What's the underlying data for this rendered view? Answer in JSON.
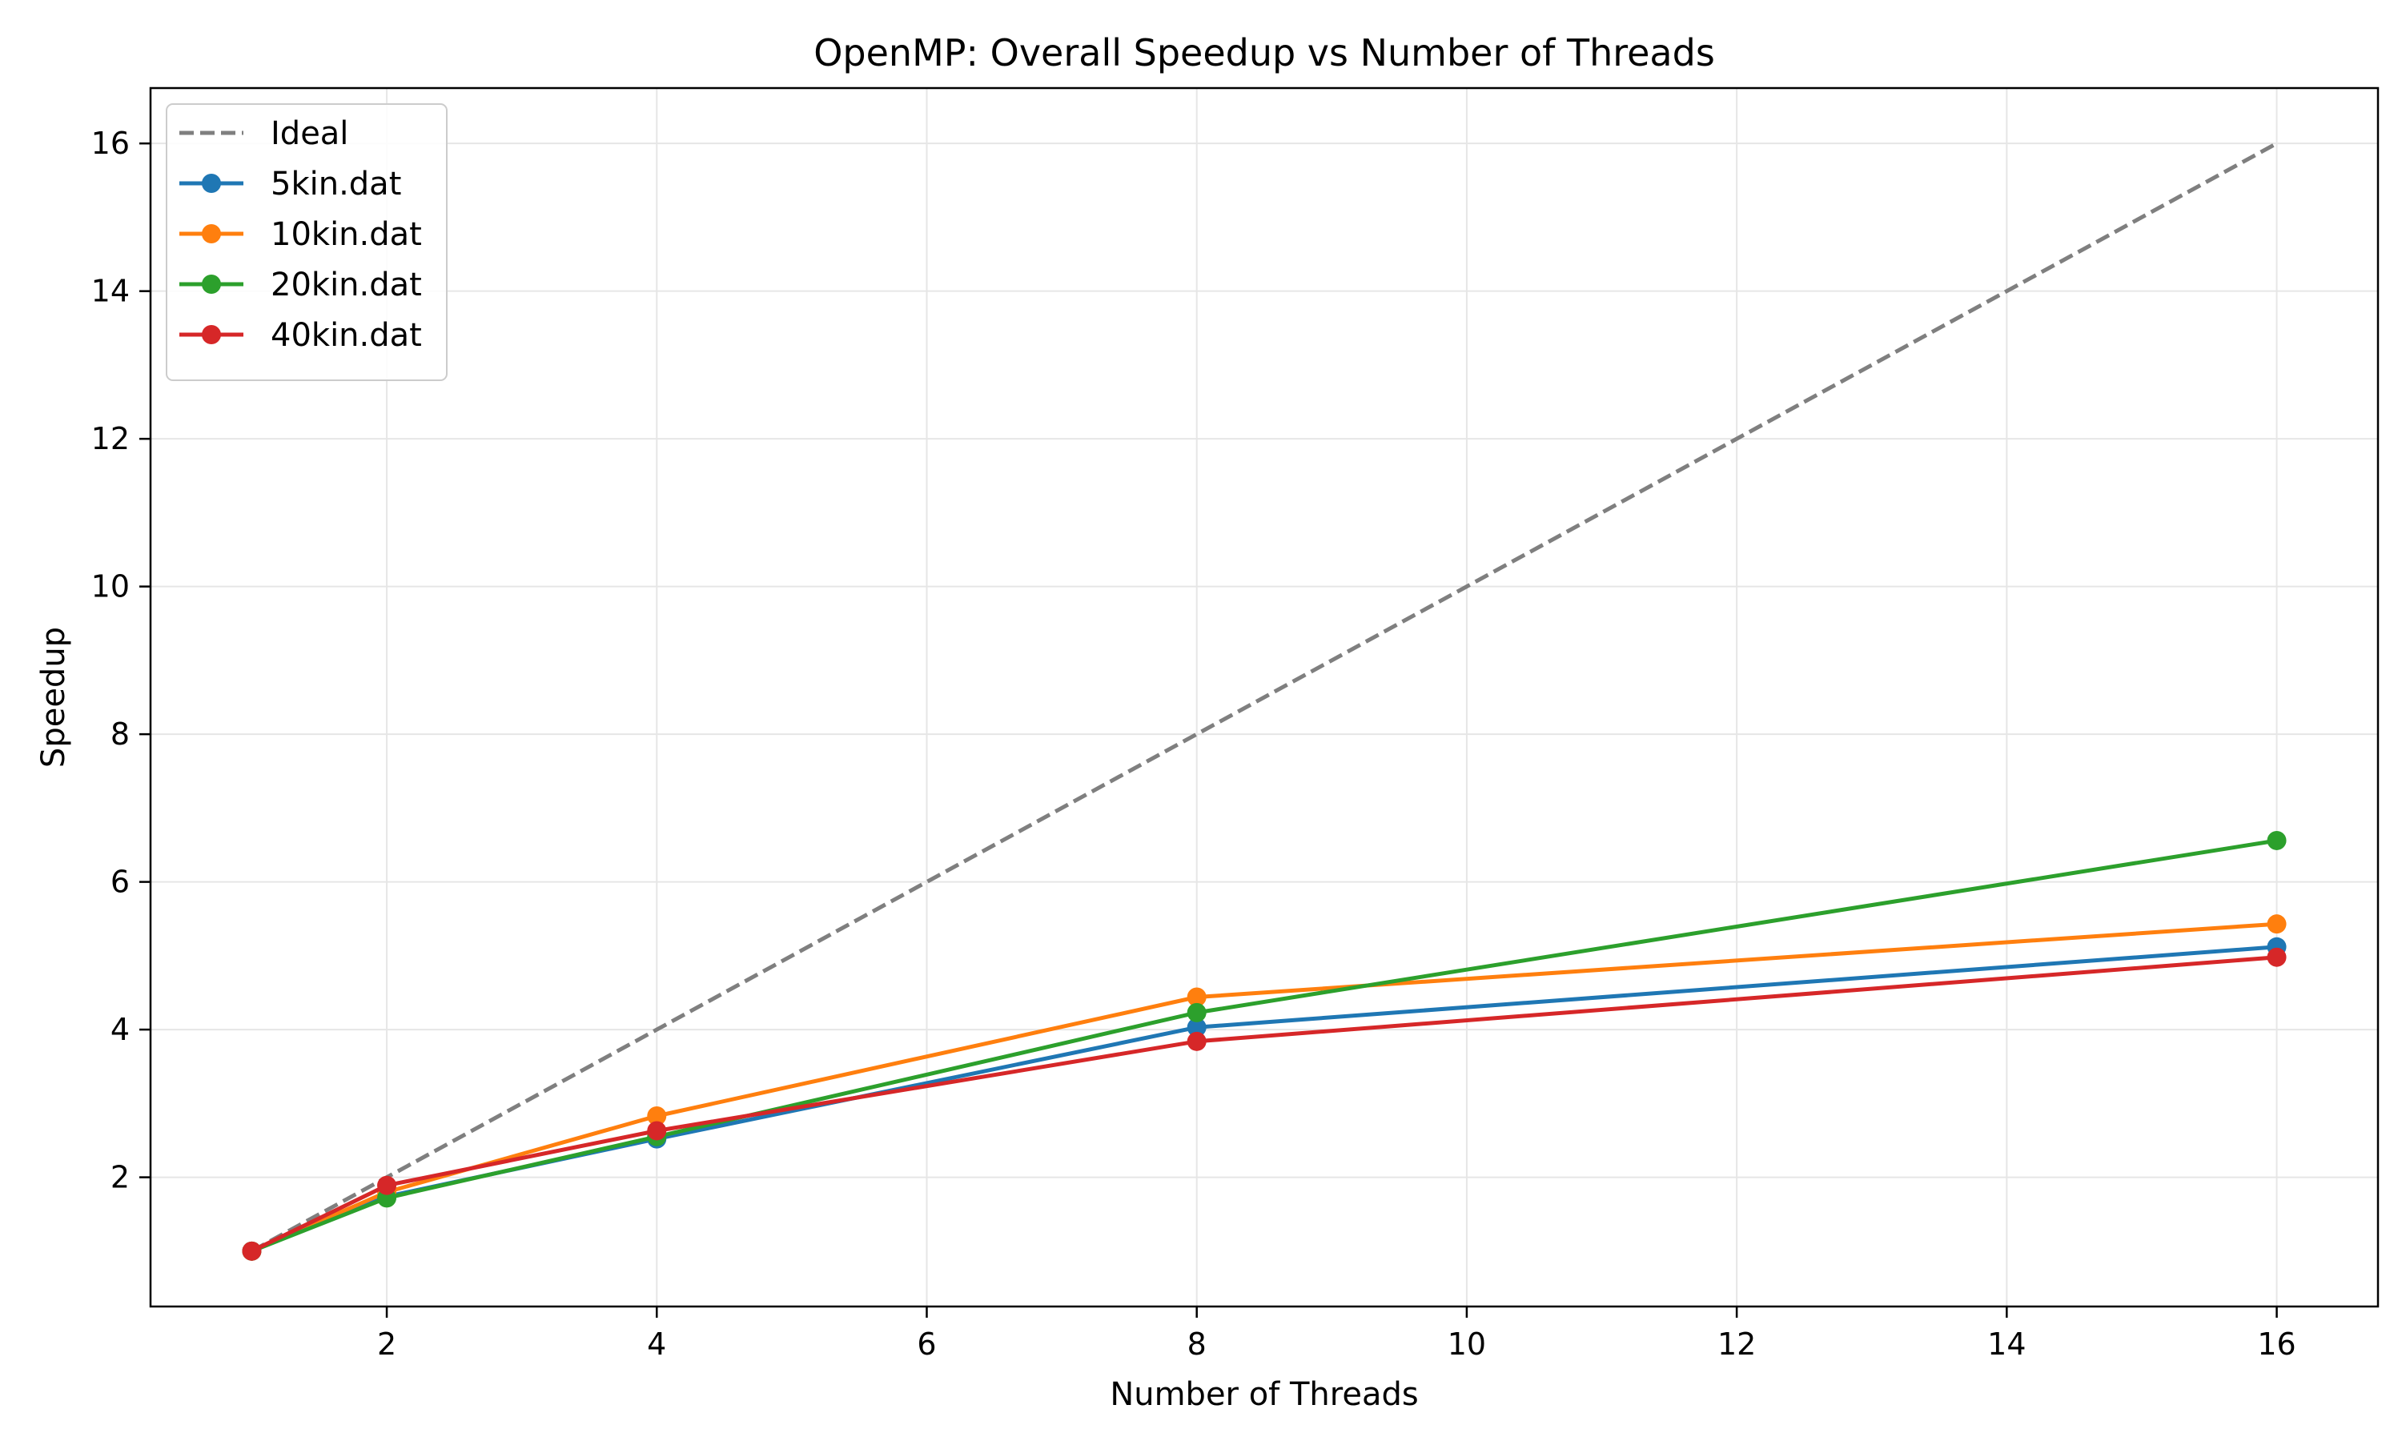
{
  "chart_data": {
    "type": "line",
    "title": "OpenMP: Overall Speedup vs Number of Threads",
    "xlabel": "Number of Threads",
    "ylabel": "Speedup",
    "xlim": [
      0.25,
      16.75
    ],
    "ylim": [
      0.25,
      16.75
    ],
    "x_ticks": [
      2,
      4,
      6,
      8,
      10,
      12,
      14,
      16
    ],
    "y_ticks": [
      2,
      4,
      6,
      8,
      10,
      12,
      14,
      16
    ],
    "grid": true,
    "legend_position": "top-left",
    "x": [
      1,
      2,
      4,
      8,
      16
    ],
    "series": [
      {
        "name": "Ideal",
        "values": [
          1,
          2,
          4,
          8,
          16
        ],
        "color": "#7f7f7f",
        "style": "dashed",
        "marker": "none"
      },
      {
        "name": "5kin.dat",
        "values": [
          1.0,
          1.74,
          2.52,
          4.03,
          5.12
        ],
        "color": "#1f77b4",
        "style": "solid",
        "marker": "circle"
      },
      {
        "name": "10kin.dat",
        "values": [
          1.0,
          1.8,
          2.83,
          4.44,
          5.43
        ],
        "color": "#ff7f0e",
        "style": "solid",
        "marker": "circle"
      },
      {
        "name": "20kin.dat",
        "values": [
          1.0,
          1.72,
          2.55,
          4.23,
          6.56
        ],
        "color": "#2ca02c",
        "style": "solid",
        "marker": "circle"
      },
      {
        "name": "40kin.dat",
        "values": [
          1.0,
          1.89,
          2.63,
          3.84,
          4.98
        ],
        "color": "#d62728",
        "style": "solid",
        "marker": "circle"
      }
    ]
  }
}
